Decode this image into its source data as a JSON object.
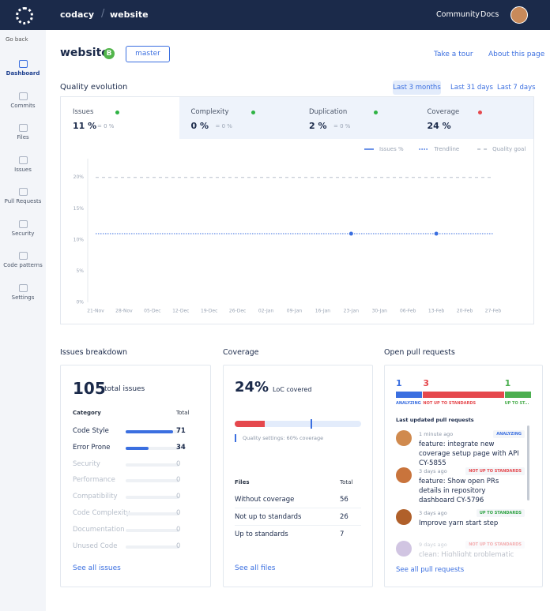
{
  "topbar": {
    "org": "codacy",
    "repo": "website",
    "links": [
      "Community",
      "Docs"
    ]
  },
  "sidebar": {
    "back": "Go back",
    "items": [
      "Dashboard",
      "Commits",
      "Files",
      "Issues",
      "Pull Requests",
      "Security",
      "Code patterns",
      "Settings"
    ]
  },
  "header": {
    "title": "website",
    "grade": "B",
    "branch": "master",
    "actions": [
      "Take a tour",
      "About this page"
    ]
  },
  "quality_evolution": {
    "title": "Quality evolution",
    "ranges": [
      "Last 3 months",
      "Last 31 days",
      "Last 7 days"
    ],
    "metrics": [
      {
        "name": "Issues",
        "value": "11 %",
        "delta": "= 0 %",
        "dot_color": "#2fb344"
      },
      {
        "name": "Complexity",
        "value": "0 %",
        "delta": "= 0 %",
        "dot_color": "#2fb344"
      },
      {
        "name": "Duplication",
        "value": "2 %",
        "delta": "= 0 %",
        "dot_color": "#2fb344"
      },
      {
        "name": "Coverage",
        "value": "24 %",
        "dot_color": "#e5484d"
      }
    ]
  },
  "chart_data": {
    "type": "line",
    "categories": [
      "21-Nov",
      "28-Nov",
      "05-Dec",
      "12-Dec",
      "19-Dec",
      "26-Dec",
      "02-Jan",
      "09-Jan",
      "16-Jan",
      "23-Jan",
      "30-Jan",
      "06-Feb",
      "13-Feb",
      "20-Feb",
      "27-Feb"
    ],
    "series": [
      {
        "name": "Issues %",
        "color": "#3b6fe0",
        "style": "solid",
        "markers": true,
        "values": [
          null,
          null,
          null,
          null,
          null,
          null,
          null,
          null,
          null,
          11,
          null,
          null,
          11,
          null,
          null
        ]
      },
      {
        "name": "Trendline",
        "color": "#3b6fe0",
        "style": "dotted",
        "values": [
          11,
          11,
          11,
          11,
          11,
          11,
          11,
          11,
          11,
          11,
          11,
          11,
          11,
          11,
          11
        ]
      },
      {
        "name": "Quality goal",
        "color": "#b8bfca",
        "style": "dashed",
        "values": [
          20,
          20,
          20,
          20,
          20,
          20,
          20,
          20,
          20,
          20,
          20,
          20,
          20,
          20,
          20
        ]
      }
    ],
    "ylim": [
      0,
      23
    ],
    "yticks": [
      {
        "value": 0,
        "label": "0%"
      },
      {
        "value": 5,
        "label": "5%"
      },
      {
        "value": 10,
        "label": "10%"
      },
      {
        "value": 15,
        "label": "15%"
      },
      {
        "value": 20,
        "label": "20%"
      }
    ]
  },
  "issues_breakdown": {
    "title": "Issues breakdown",
    "total": 105,
    "total_label": "total issues",
    "columns": [
      "Category",
      "Total"
    ],
    "rows": [
      {
        "name": "Code Style",
        "value": 71
      },
      {
        "name": "Error Prone",
        "value": 34
      },
      {
        "name": "Security",
        "value": 0
      },
      {
        "name": "Performance",
        "value": 0
      },
      {
        "name": "Compatibility",
        "value": 0
      },
      {
        "name": "Code Complexity",
        "value": 0
      },
      {
        "name": "Documentation",
        "value": 0
      },
      {
        "name": "Unused Code",
        "value": 0
      }
    ],
    "link": "See all issues"
  },
  "coverage": {
    "title": "Coverage",
    "percent": 24,
    "percent_label": "24%",
    "label": "LoC covered",
    "goal": 60,
    "goal_text": "Quality settings: 60% coverage",
    "columns": [
      "Files",
      "Total"
    ],
    "rows": [
      {
        "name": "Without coverage",
        "value": 56
      },
      {
        "name": "Not up to standards",
        "value": 26
      },
      {
        "name": "Up to standards",
        "value": 7
      }
    ],
    "link": "See all files"
  },
  "pull_requests": {
    "title": "Open pull requests",
    "segments": [
      {
        "count": 1,
        "label": "ANALYZING",
        "color": "#3b6fe0"
      },
      {
        "count": 3,
        "label": "NOT UP TO STANDARDS",
        "color": "#e5484d"
      },
      {
        "count": 1,
        "label": "UP TO ST...",
        "color": "#4caf50"
      }
    ],
    "subtitle": "Last updated pull requests",
    "items": [
      {
        "time": "1 minute ago",
        "status": "ANALYZING",
        "tone": "#3b6fe0",
        "title": "feature: integrate new coverage setup page with API CY-5855"
      },
      {
        "time": "3 days ago",
        "status": "NOT UP TO STANDARDS",
        "tone": "#e5484d",
        "title": "feature: Show open PRs details in repository dashboard CY-5796"
      },
      {
        "time": "3 days ago",
        "status": "UP TO STANDARDS",
        "tone": "#2fa344",
        "title": "Improve yarn start step"
      },
      {
        "time": "9 days ago",
        "status": "NOT UP TO STANDARDS",
        "tone": "#e5484d",
        "title": "clean: Highlight problematic"
      }
    ],
    "link": "See all pull requests"
  }
}
